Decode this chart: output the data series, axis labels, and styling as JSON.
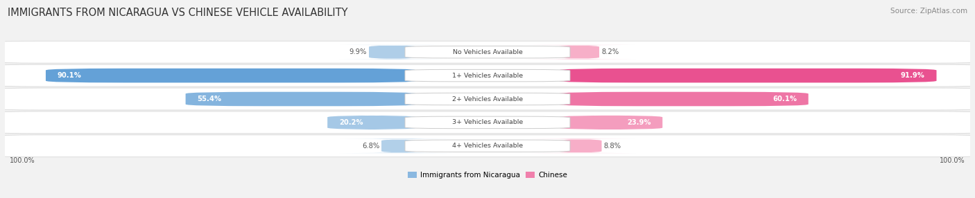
{
  "title": "IMMIGRANTS FROM NICARAGUA VS CHINESE VEHICLE AVAILABILITY",
  "source": "Source: ZipAtlas.com",
  "categories": [
    "No Vehicles Available",
    "1+ Vehicles Available",
    "2+ Vehicles Available",
    "3+ Vehicles Available",
    "4+ Vehicles Available"
  ],
  "nicaragua_values": [
    9.9,
    90.1,
    55.4,
    20.2,
    6.8
  ],
  "chinese_values": [
    8.2,
    91.9,
    60.1,
    23.9,
    8.8
  ],
  "nicaragua_color_light": "#b8d4ea",
  "nicaragua_color_dark": "#5b9bd5",
  "chinese_color_light": "#f8b8ce",
  "chinese_color_dark": "#e8488a",
  "nicaragua_label": "Immigrants from Nicaragua",
  "chinese_label": "Chinese",
  "background_color": "#f2f2f2",
  "row_bg_color": "#ffffff",
  "max_value": 100.0,
  "left_label": "100.0%",
  "right_label": "100.0%",
  "title_fontsize": 10.5,
  "source_fontsize": 7.5,
  "bar_height": 0.6,
  "threshold_inside": 15.0
}
